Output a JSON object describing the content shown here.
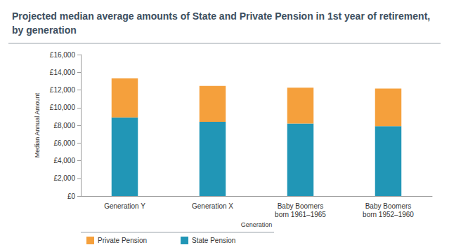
{
  "chart_data": {
    "type": "bar",
    "title": "Projected median average amounts of State and Private Pension in 1st year of retirement, by generation",
    "x_label": "Generation",
    "y_label": "Median Annual Amount",
    "categories": [
      "Generation Y",
      "Generation X",
      "Baby Boomers\nborn 1961–1965",
      "Baby Boomers\nborn 1952–1960"
    ],
    "series": [
      {
        "name": "State Pension",
        "color": "#2196b6",
        "values": [
          8900,
          8400,
          8200,
          7900
        ]
      },
      {
        "name": "Private Pension",
        "color": "#f5a03c",
        "values": [
          4400,
          4050,
          4050,
          4250
        ]
      }
    ],
    "stacked": true,
    "ylim": [
      0,
      16000
    ],
    "yticks": [
      {
        "value": 0,
        "label": "£0"
      },
      {
        "value": 2000,
        "label": "£2,000"
      },
      {
        "value": 4000,
        "label": "£4,000"
      },
      {
        "value": 6000,
        "label": "£6,000"
      },
      {
        "value": 8000,
        "label": "£8,000"
      },
      {
        "value": 10000,
        "label": "£10,000"
      },
      {
        "value": 12000,
        "label": "£12,000"
      },
      {
        "value": 14000,
        "label": "£14,000"
      },
      {
        "value": 16000,
        "label": "£16,000"
      }
    ],
    "grid": false,
    "legend": "bottom-left"
  }
}
